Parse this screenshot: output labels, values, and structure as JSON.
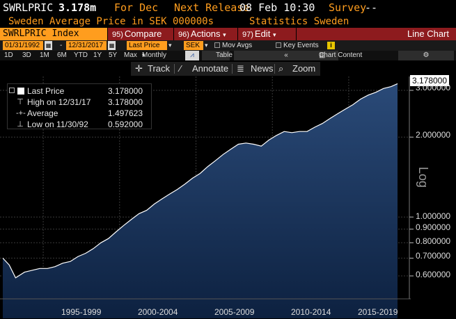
{
  "header": {
    "ticker": "SWRLPRIC",
    "last_value": "3.178m",
    "period": "For Dec",
    "next_release_label": "Next Release",
    "next_release_value": "08 Feb 10:30",
    "survey_label": "Survey",
    "survey_value": "--",
    "description": "Sweden Average Price in SEK 000000s",
    "source": "Statistics Sweden"
  },
  "menubar": {
    "security": "SWRLPRIC Index",
    "compare_num": "95)",
    "compare": "Compare",
    "actions_num": "96)",
    "actions": "Actions",
    "edit_num": "97)",
    "edit": "Edit",
    "chart_type": "Line Chart"
  },
  "controls": {
    "start_date": "01/31/1992",
    "end_date": "12/31/2017",
    "dash": "-",
    "field": "Last Price",
    "currency": "SEK",
    "mov_avgs": "Mov Avgs",
    "key_events": "Key Events",
    "chart_content": "Chart Content",
    "collapse": "«"
  },
  "ranges": {
    "items": [
      "1D",
      "3D",
      "1M",
      "6M",
      "YTD",
      "1Y",
      "5Y",
      "Max"
    ],
    "frequency": "Monthly",
    "table": "Table"
  },
  "toolbar": {
    "track": "Track",
    "annotate": "Annotate",
    "news": "News",
    "zoom": "Zoom"
  },
  "legend": {
    "last_price_label": "Last Price",
    "last_price_value": "3.178000",
    "high_label": "High on 12/31/17",
    "high_value": "3.178000",
    "average_label": "Average",
    "average_value": "1.497623",
    "low_label": "Low on 11/30/92",
    "low_value": "0.592000"
  },
  "chart_data": {
    "type": "area",
    "title": "",
    "ylabel": "Log",
    "y_scale": "log",
    "last_value_label": "3.178000",
    "y_ticks": [
      "0.600000",
      "0.700000",
      "0.800000",
      "0.900000",
      "1.000000",
      "2.000000",
      "3.000000"
    ],
    "x_ticks": [
      "1995-1999",
      "2000-2004",
      "2005-2009",
      "2010-2014",
      "2015-2019"
    ],
    "series": [
      {
        "values": [
          [
            1992.08,
            0.7
          ],
          [
            1992.5,
            0.66
          ],
          [
            1992.92,
            0.59
          ],
          [
            1993.5,
            0.62
          ],
          [
            1994.0,
            0.63
          ],
          [
            1994.5,
            0.64
          ],
          [
            1995.0,
            0.64
          ],
          [
            1995.5,
            0.65
          ],
          [
            1996.0,
            0.67
          ],
          [
            1996.5,
            0.68
          ],
          [
            1997.0,
            0.71
          ],
          [
            1997.5,
            0.73
          ],
          [
            1998.0,
            0.76
          ],
          [
            1998.5,
            0.8
          ],
          [
            1999.0,
            0.83
          ],
          [
            1999.5,
            0.88
          ],
          [
            2000.0,
            0.93
          ],
          [
            2000.5,
            0.98
          ],
          [
            2001.0,
            1.03
          ],
          [
            2001.5,
            1.06
          ],
          [
            2002.0,
            1.12
          ],
          [
            2002.5,
            1.17
          ],
          [
            2003.0,
            1.22
          ],
          [
            2003.5,
            1.27
          ],
          [
            2004.0,
            1.33
          ],
          [
            2004.5,
            1.4
          ],
          [
            2005.0,
            1.46
          ],
          [
            2005.5,
            1.55
          ],
          [
            2006.0,
            1.63
          ],
          [
            2006.5,
            1.72
          ],
          [
            2007.0,
            1.8
          ],
          [
            2007.5,
            1.88
          ],
          [
            2008.0,
            1.9
          ],
          [
            2008.5,
            1.88
          ],
          [
            2009.0,
            1.85
          ],
          [
            2009.5,
            1.95
          ],
          [
            2010.0,
            2.03
          ],
          [
            2010.5,
            2.1
          ],
          [
            2011.0,
            2.08
          ],
          [
            2011.5,
            2.1
          ],
          [
            2012.0,
            2.1
          ],
          [
            2012.5,
            2.18
          ],
          [
            2013.0,
            2.25
          ],
          [
            2013.5,
            2.35
          ],
          [
            2014.0,
            2.45
          ],
          [
            2014.5,
            2.55
          ],
          [
            2015.0,
            2.65
          ],
          [
            2015.5,
            2.78
          ],
          [
            2016.0,
            2.88
          ],
          [
            2016.5,
            2.95
          ],
          [
            2017.0,
            3.05
          ],
          [
            2017.5,
            3.1
          ],
          [
            2017.92,
            3.178
          ]
        ]
      }
    ]
  }
}
